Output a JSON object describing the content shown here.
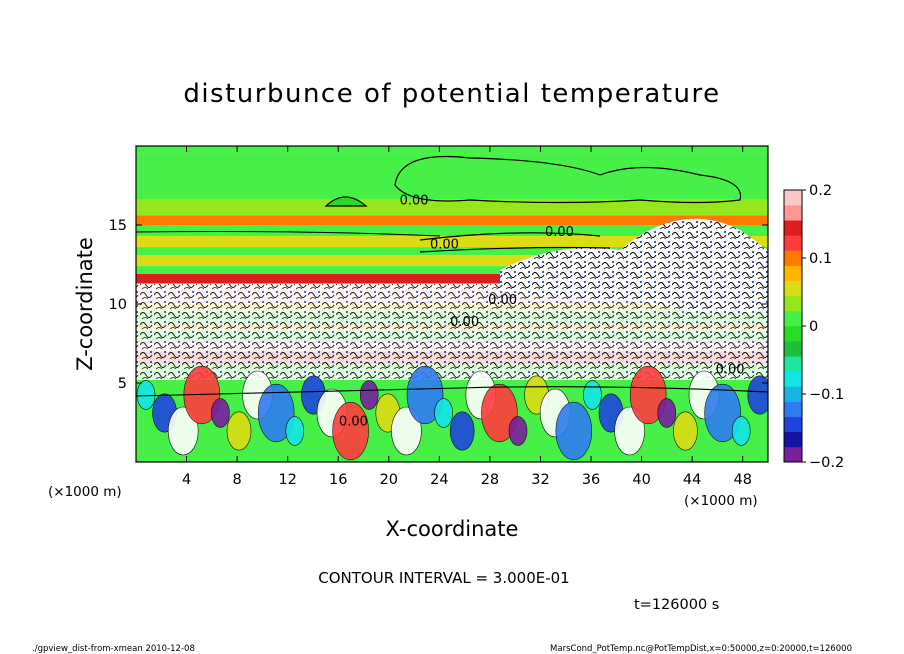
{
  "chart_data": {
    "type": "heatmap",
    "title": "disturbunce of potential temperature",
    "xlabel": "X-coordinate",
    "ylabel": "Z-coordinate",
    "x_unit_label": "(×1000 m)",
    "y_unit_label": "(×1000 m)",
    "xlim": [
      0,
      50
    ],
    "ylim": [
      0,
      20
    ],
    "x_ticks": [
      4,
      8,
      12,
      16,
      20,
      24,
      28,
      32,
      36,
      40,
      44,
      48
    ],
    "y_ticks": [
      5,
      10,
      15
    ],
    "contour_interval_text": "CONTOUR INTERVAL = 3.000E-01",
    "time_label": "t=126000 s",
    "contour_labels": [
      {
        "text": "0.00",
        "x": 22.0,
        "z": 16.3
      },
      {
        "text": "0.00",
        "x": 24.4,
        "z": 13.5
      },
      {
        "text": "0.00",
        "x": 33.5,
        "z": 14.3
      },
      {
        "text": "0.00",
        "x": 29.0,
        "z": 10.0
      },
      {
        "text": "0.00",
        "x": 26.0,
        "z": 8.6
      },
      {
        "text": "0.00",
        "x": 47.0,
        "z": 5.6
      },
      {
        "text": "0.00",
        "x": 17.2,
        "z": 2.3
      }
    ],
    "colorbar": {
      "min": -0.2,
      "max": 0.2,
      "tick_values": [
        0.2,
        0.1,
        0,
        -0.1,
        -0.2
      ],
      "tick_labels": [
        "0.2",
        "0.1",
        "0",
        "−0.1",
        "−0.2"
      ],
      "colors": [
        "#7a1fa0",
        "#1414a0",
        "#1e46dc",
        "#2e7cf0",
        "#18b4e6",
        "#14e6e6",
        "#1ee6a0",
        "#1ebe3c",
        "#28dc28",
        "#46f046",
        "#96e61e",
        "#dcdc14",
        "#ffb400",
        "#ff7800",
        "#ff3c3c",
        "#dc1e1e",
        "#ff9696",
        "#ffc8c8"
      ]
    },
    "horizontal_bands": [
      {
        "z0": 19.5,
        "z1": 20.0,
        "value": 0.02
      },
      {
        "z0": 16.6,
        "z1": 19.5,
        "value": 0.0
      },
      {
        "z0": 15.6,
        "z1": 16.6,
        "value": 0.04
      },
      {
        "z0": 15.0,
        "z1": 15.6,
        "value": 0.09
      },
      {
        "z0": 14.3,
        "z1": 15.0,
        "value": 0.0
      },
      {
        "z0": 13.6,
        "z1": 14.3,
        "value": 0.05
      },
      {
        "z0": 13.1,
        "z1": 13.6,
        "value": 0.0
      },
      {
        "z0": 12.4,
        "z1": 13.1,
        "value": 0.05
      },
      {
        "z0": 11.9,
        "z1": 12.4,
        "value": 0.0
      },
      {
        "z0": 11.3,
        "z1": 11.9,
        "value": 0.15
      },
      {
        "z0": 10.6,
        "z1": 11.3,
        "value": 0.18
      },
      {
        "z0": 10.0,
        "z1": 10.6,
        "value": 0.2
      },
      {
        "z0": 9.5,
        "z1": 10.0,
        "value": 0.05
      },
      {
        "z0": 8.7,
        "z1": 9.5,
        "value": 0.0
      },
      {
        "z0": 8.3,
        "z1": 8.7,
        "value": 0.07
      },
      {
        "z0": 7.6,
        "z1": 8.3,
        "value": 0.0
      },
      {
        "z0": 7.0,
        "z1": 7.6,
        "value": 0.2
      },
      {
        "z0": 6.2,
        "z1": 7.0,
        "value": 0.15
      },
      {
        "z0": 5.4,
        "z1": 6.2,
        "value": 0.0
      },
      {
        "z0": 0.0,
        "z1": 5.4,
        "value": 0.0
      }
    ],
    "grid": false
  },
  "footer": {
    "left": "./gpview_dist-from-xmean  2010-12-08",
    "right": "MarsCond_PotTemp.nc@PotTempDist,x=0:50000,z=0:20000,t=126000"
  }
}
